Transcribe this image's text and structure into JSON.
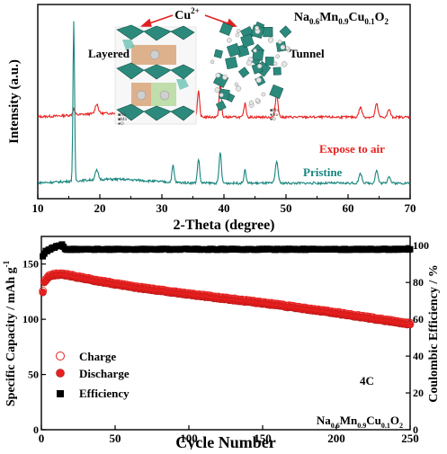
{
  "colors": {
    "exposed": "#e8201f",
    "pristine": "#17857d",
    "charge": "#e8201f",
    "discharge": "#e8201f",
    "efficiency": "#000000",
    "crystal": "#2c8a7c",
    "cu_arrow": "#e02020",
    "layer_band": "#d9a47a",
    "axis": "#000000"
  },
  "chart_data": [
    {
      "type": "line",
      "title": "",
      "xlabel": "2-Theta (degree)",
      "ylabel": "Intensity (a.u.)",
      "xlim": [
        10,
        70
      ],
      "xticks": [
        10,
        20,
        30,
        40,
        50,
        60,
        70
      ],
      "yticks_labeled": false,
      "formula": {
        "el1": "Na",
        "s1": "0.6",
        "el2": "Mn",
        "s2": "0.9",
        "el3": "Cu",
        "s3": "0.1",
        "el4": "O",
        "s4": "2"
      },
      "inset": {
        "cu_label": "Cu",
        "cu_charge": "2+",
        "layered_label": "Layered",
        "tunnel_label": "Tunnel"
      },
      "peaks": [
        {
          "x": 15.8,
          "h": 0.86,
          "w": 0.18
        },
        {
          "x": 19.5,
          "h": 0.05,
          "w": 0.35
        },
        {
          "x": 31.8,
          "h": 0.09,
          "w": 0.25
        },
        {
          "x": 35.9,
          "h": 0.13,
          "w": 0.25
        },
        {
          "x": 39.4,
          "h": 0.17,
          "w": 0.25
        },
        {
          "x": 43.4,
          "h": 0.07,
          "w": 0.25
        },
        {
          "x": 48.5,
          "h": 0.12,
          "w": 0.3
        },
        {
          "x": 62.0,
          "h": 0.05,
          "w": 0.35
        },
        {
          "x": 64.6,
          "h": 0.07,
          "w": 0.3
        },
        {
          "x": 66.6,
          "h": 0.04,
          "w": 0.3
        }
      ],
      "series": [
        {
          "name": "Expose to air",
          "offset": 0.42,
          "scale": 1.0,
          "cu_peak_extra": 0.0
        },
        {
          "name": "Pristine",
          "offset": 0.08,
          "scale": 0.95,
          "cu_peak_extra": 0.0
        }
      ]
    },
    {
      "type": "scatter",
      "title": "",
      "xlabel": "Cycle Number",
      "ylabel": "Specific Capacity / mAh g",
      "ylabel_sup": "-1",
      "y2label": "Coulombic Efficiency / %",
      "xlim": [
        0,
        250
      ],
      "ylim": [
        0,
        175
      ],
      "y2lim": [
        0,
        105
      ],
      "xticks": [
        0,
        50,
        100,
        150,
        200,
        250
      ],
      "yticks": [
        0,
        50,
        100,
        150
      ],
      "y2ticks": [
        0,
        20,
        40,
        60,
        80,
        100
      ],
      "rate_label": "4C",
      "formula": {
        "el1": "Na",
        "s1": "0.6",
        "el2": "Mn",
        "s2": "0.9",
        "el3": "Cu",
        "s3": "0.1",
        "el4": "O",
        "s4": "2"
      },
      "legend": [
        "Charge",
        "Discharge",
        "Efficiency"
      ],
      "capacity_keypoints": [
        [
          1,
          124
        ],
        [
          2,
          133
        ],
        [
          5,
          138
        ],
        [
          10,
          140
        ],
        [
          15,
          140
        ],
        [
          30,
          136
        ],
        [
          60,
          129
        ],
        [
          100,
          122
        ],
        [
          150,
          114
        ],
        [
          200,
          105
        ],
        [
          250,
          95
        ]
      ],
      "efficiency_keypoints": [
        [
          1,
          94
        ],
        [
          3,
          97
        ],
        [
          6,
          98
        ],
        [
          10,
          99.5
        ],
        [
          14,
          100.5
        ],
        [
          16,
          98
        ],
        [
          250,
          98
        ]
      ],
      "charge_offset": 1.5,
      "cycles": 250
    }
  ]
}
